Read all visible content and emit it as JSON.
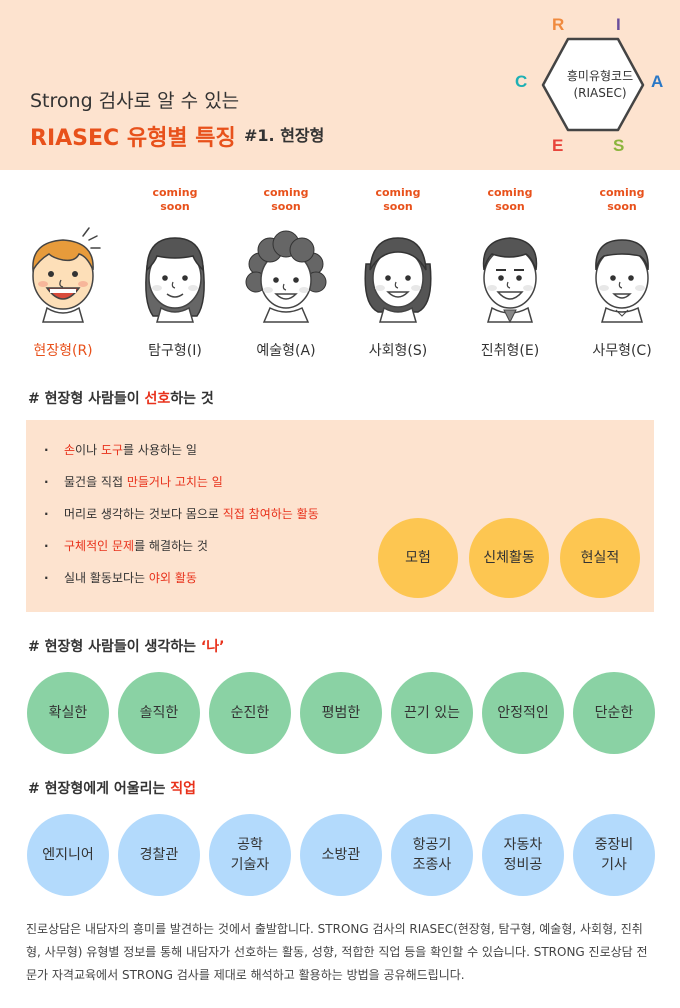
{
  "header": {
    "subtitle": "Strong 검사로 알 수 있는",
    "title": "RIASEC 유형별 특징",
    "title_num": "#1. 현장형",
    "hex_text": "흥미유형코드\n(RIASEC)",
    "hex_letters": [
      {
        "letter": "R",
        "color": "#f08a3e"
      },
      {
        "letter": "I",
        "color": "#6a4e9c"
      },
      {
        "letter": "A",
        "color": "#2a78c6"
      },
      {
        "letter": "S",
        "color": "#8bb43c"
      },
      {
        "letter": "E",
        "color": "#e8443a"
      },
      {
        "letter": "C",
        "color": "#1eb0b4"
      }
    ]
  },
  "types": [
    {
      "label": "현장형(R)",
      "soon": "",
      "active": true
    },
    {
      "label": "탐구형(I)",
      "soon": "coming\nsoon",
      "active": false
    },
    {
      "label": "예술형(A)",
      "soon": "coming\nsoon",
      "active": false
    },
    {
      "label": "사회형(S)",
      "soon": "coming\nsoon",
      "active": false
    },
    {
      "label": "진취형(E)",
      "soon": "coming\nsoon",
      "active": false
    },
    {
      "label": "사무형(C)",
      "soon": "coming\nsoon",
      "active": false
    }
  ],
  "section1": {
    "prefix": "# 현장형 사람들이 ",
    "highlight": "선호",
    "suffix": "하는 것",
    "items": [
      [
        {
          "t": "손",
          "h": true
        },
        {
          "t": "이나 ",
          "h": false
        },
        {
          "t": "도구",
          "h": true
        },
        {
          "t": "를 사용하는 일",
          "h": false
        }
      ],
      [
        {
          "t": "물건을 직접 ",
          "h": false
        },
        {
          "t": "만들거나 고치는 일",
          "h": true
        }
      ],
      [
        {
          "t": "머리로 생각하는 것보다 몸으로 ",
          "h": false
        },
        {
          "t": "직접 참여하는 활동",
          "h": true
        }
      ],
      [
        {
          "t": "구체적인 문제",
          "h": true
        },
        {
          "t": "를 해결하는 것",
          "h": false
        }
      ],
      [
        {
          "t": "실내 활동보다는 ",
          "h": false
        },
        {
          "t": "야외 활동",
          "h": true
        }
      ]
    ],
    "keywords": [
      "모험",
      "신체활동",
      "현실적"
    ]
  },
  "section2": {
    "prefix": "# 현장형 사람들이 생각하는 ",
    "highlight": "‘나’",
    "traits": [
      "확실한",
      "솔직한",
      "순진한",
      "평범한",
      "끈기 있는",
      "안정적인",
      "단순한"
    ]
  },
  "section3": {
    "prefix": "# 현장형에게 어울리는 ",
    "highlight": "직업",
    "jobs": [
      "엔지니어",
      "경찰관",
      "공학\n기술자",
      "소방관",
      "항공기\n조종사",
      "자동차\n정비공",
      "중장비\n기사"
    ]
  },
  "footer": "진로상담은 내담자의 흥미를 발견하는 것에서 출발합니다. STRONG 검사의 RIASEC(현장형, 탐구형, 예술형, 사회형, 진취형, 사무형) 유형별 정보를 통해 내담자가 선호하는 활동, 성향, 적합한 직업 등을 확인할 수 있습니다. STRONG 진로상담 전문가 자격교육에서 STRONG 검사를 제대로 해석하고 활용하는 방법을 공유해드립니다."
}
